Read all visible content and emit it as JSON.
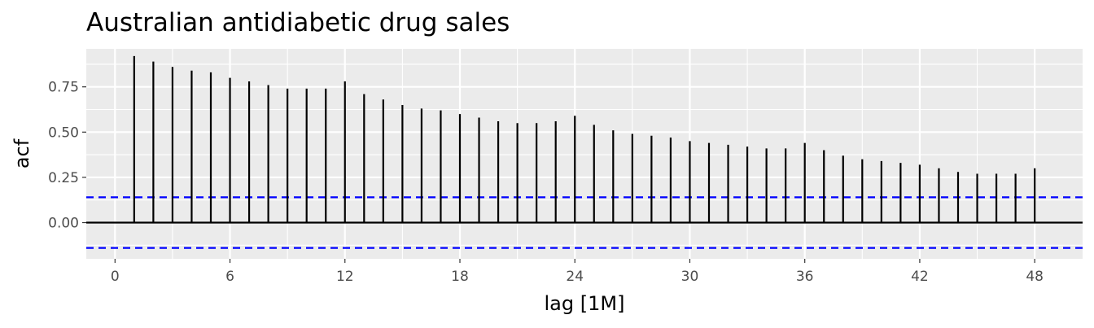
{
  "chart_data": {
    "type": "bar",
    "title": "Australian antidiabetic drug sales",
    "xlabel": "lag [1M]",
    "ylabel": "acf",
    "lags": [
      1,
      2,
      3,
      4,
      5,
      6,
      7,
      8,
      9,
      10,
      11,
      12,
      13,
      14,
      15,
      16,
      17,
      18,
      19,
      20,
      21,
      22,
      23,
      24,
      25,
      26,
      27,
      28,
      29,
      30,
      31,
      32,
      33,
      34,
      35,
      36,
      37,
      38,
      39,
      40,
      41,
      42,
      43,
      44,
      45,
      46,
      47,
      48
    ],
    "acf": [
      0.92,
      0.89,
      0.86,
      0.84,
      0.83,
      0.8,
      0.78,
      0.76,
      0.74,
      0.74,
      0.74,
      0.78,
      0.71,
      0.68,
      0.65,
      0.63,
      0.62,
      0.6,
      0.58,
      0.56,
      0.55,
      0.55,
      0.56,
      0.59,
      0.54,
      0.51,
      0.49,
      0.48,
      0.47,
      0.45,
      0.44,
      0.43,
      0.42,
      0.41,
      0.41,
      0.44,
      0.4,
      0.37,
      0.35,
      0.34,
      0.33,
      0.32,
      0.3,
      0.28,
      0.27,
      0.27,
      0.27,
      0.3
    ],
    "confidence_bound": 0.14,
    "xlim": [
      -1.5,
      50.5
    ],
    "ylim": [
      -0.2,
      0.96
    ],
    "x_ticks": [
      0,
      6,
      12,
      18,
      24,
      30,
      36,
      42,
      48
    ],
    "x_tick_labels": [
      "0",
      "6",
      "12",
      "18",
      "24",
      "30",
      "36",
      "42",
      "48"
    ],
    "y_ticks": [
      0,
      0.25,
      0.5,
      0.75
    ],
    "y_tick_labels": [
      "0.00",
      "0.25",
      "0.50",
      "0.75"
    ],
    "grid": true,
    "legend": "none",
    "colors": {
      "panel_background": "#ebebeb",
      "grid_major": "#ffffff",
      "spike": "#000000",
      "zero_line": "#000000",
      "confidence_line": "#0000ff",
      "tick_label": "#4d4d4d"
    }
  }
}
